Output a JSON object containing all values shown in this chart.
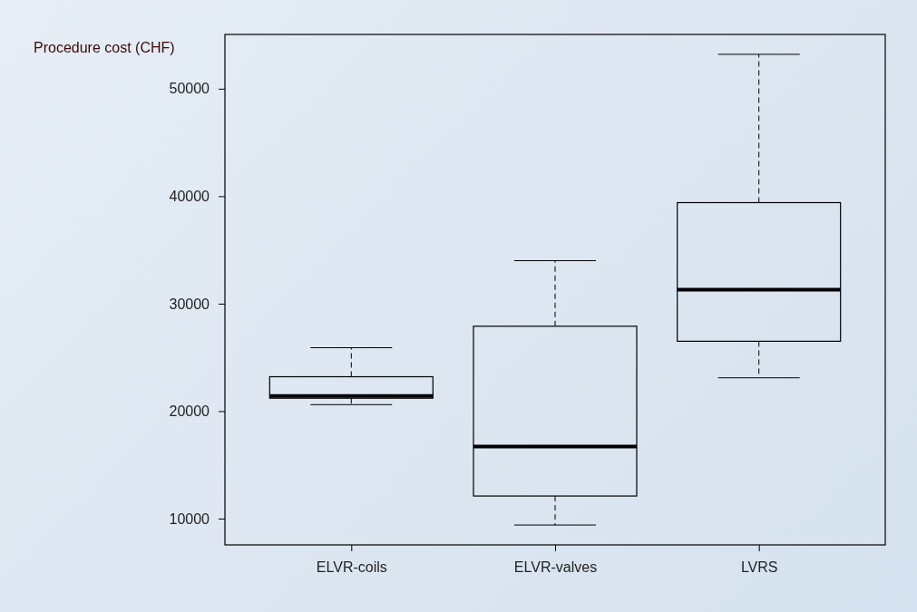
{
  "chart_data": {
    "type": "box",
    "ylabel": "Procedure cost (CHF)",
    "categories": [
      "ELVR-coils",
      "ELVR-valves",
      "LVRS"
    ],
    "boxes": [
      {
        "low": 20600,
        "q1": 21200,
        "median": 21400,
        "q3": 23200,
        "high": 25900
      },
      {
        "low": 9400,
        "q1": 12100,
        "median": 16700,
        "q3": 27900,
        "high": 34000
      },
      {
        "low": 23100,
        "q1": 26500,
        "median": 31300,
        "q3": 39400,
        "high": 53200
      }
    ],
    "ylim": [
      7550,
      55050
    ],
    "yticks": [
      10000,
      20000,
      30000,
      40000,
      50000
    ],
    "grid": false,
    "line_style": "dashed"
  }
}
